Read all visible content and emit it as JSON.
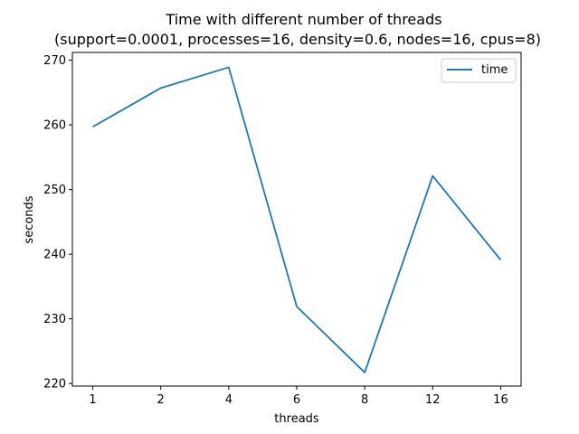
{
  "chart_data": {
    "type": "line",
    "title_line1": "Time with different number of threads",
    "title_line2": "(support=0.0001, processes=16, density=0.6, nodes=16, cpus=8)",
    "xlabel": "threads",
    "ylabel": "seconds",
    "categories": [
      "1",
      "2",
      "4",
      "6",
      "8",
      "12",
      "16"
    ],
    "series": [
      {
        "name": "time",
        "color": "#1f77b4",
        "values": [
          259.7,
          265.7,
          268.9,
          231.9,
          221.7,
          252.1,
          239.1
        ]
      }
    ],
    "ylim": [
      219.6,
      271.2
    ],
    "yticks": [
      220,
      230,
      240,
      250,
      260,
      270
    ],
    "grid": false,
    "legend": "top-right"
  }
}
